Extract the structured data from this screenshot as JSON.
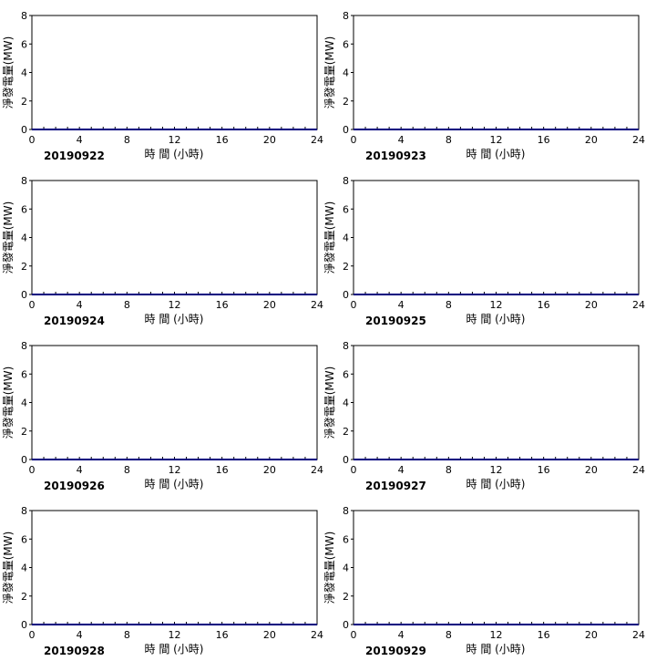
{
  "chart_data": [
    {
      "type": "line",
      "date_label": "20190922",
      "xlabel": "時 間 (小時)",
      "ylabel": "淨發電量(MW)",
      "xlim": [
        0,
        24
      ],
      "ylim": [
        0,
        8
      ],
      "xticks": [
        0,
        4,
        8,
        12,
        16,
        20,
        24
      ],
      "yticks": [
        0,
        2,
        4,
        6,
        8
      ],
      "series": [
        {
          "color": "#00007f",
          "x": [
            0,
            24
          ],
          "values": [
            0,
            0
          ]
        }
      ]
    },
    {
      "type": "line",
      "date_label": "20190923",
      "xlabel": "時 間 (小時)",
      "ylabel": "淨發電量(MW)",
      "xlim": [
        0,
        24
      ],
      "ylim": [
        0,
        8
      ],
      "xticks": [
        0,
        4,
        8,
        12,
        16,
        20,
        24
      ],
      "yticks": [
        0,
        2,
        4,
        6,
        8
      ],
      "series": [
        {
          "color": "#00007f",
          "x": [
            0,
            24
          ],
          "values": [
            0,
            0
          ]
        }
      ]
    },
    {
      "type": "line",
      "date_label": "20190924",
      "xlabel": "時 間 (小時)",
      "ylabel": "淨發電量(MW)",
      "xlim": [
        0,
        24
      ],
      "ylim": [
        0,
        8
      ],
      "xticks": [
        0,
        4,
        8,
        12,
        16,
        20,
        24
      ],
      "yticks": [
        0,
        2,
        4,
        6,
        8
      ],
      "series": [
        {
          "color": "#00007f",
          "x": [
            0,
            24
          ],
          "values": [
            0,
            0
          ]
        }
      ]
    },
    {
      "type": "line",
      "date_label": "20190925",
      "xlabel": "時 間 (小時)",
      "ylabel": "淨發電量(MW)",
      "xlim": [
        0,
        24
      ],
      "ylim": [
        0,
        8
      ],
      "xticks": [
        0,
        4,
        8,
        12,
        16,
        20,
        24
      ],
      "yticks": [
        0,
        2,
        4,
        6,
        8
      ],
      "series": [
        {
          "color": "#00007f",
          "x": [
            0,
            24
          ],
          "values": [
            0,
            0
          ]
        }
      ]
    },
    {
      "type": "line",
      "date_label": "20190926",
      "xlabel": "時 間 (小時)",
      "ylabel": "淨發電量(MW)",
      "xlim": [
        0,
        24
      ],
      "ylim": [
        0,
        8
      ],
      "xticks": [
        0,
        4,
        8,
        12,
        16,
        20,
        24
      ],
      "yticks": [
        0,
        2,
        4,
        6,
        8
      ],
      "series": [
        {
          "color": "#00007f",
          "x": [
            0,
            24
          ],
          "values": [
            0,
            0
          ]
        }
      ]
    },
    {
      "type": "line",
      "date_label": "20190927",
      "xlabel": "時 間 (小時)",
      "ylabel": "淨發電量(MW)",
      "xlim": [
        0,
        24
      ],
      "ylim": [
        0,
        8
      ],
      "xticks": [
        0,
        4,
        8,
        12,
        16,
        20,
        24
      ],
      "yticks": [
        0,
        2,
        4,
        6,
        8
      ],
      "series": [
        {
          "color": "#00007f",
          "x": [
            0,
            24
          ],
          "values": [
            0,
            0
          ]
        }
      ]
    },
    {
      "type": "line",
      "date_label": "20190928",
      "xlabel": "時 間 (小時)",
      "ylabel": "淨發電量(MW)",
      "xlim": [
        0,
        24
      ],
      "ylim": [
        0,
        8
      ],
      "xticks": [
        0,
        4,
        8,
        12,
        16,
        20,
        24
      ],
      "yticks": [
        0,
        2,
        4,
        6,
        8
      ],
      "series": [
        {
          "color": "#00007f",
          "x": [
            0,
            24
          ],
          "values": [
            0,
            0
          ]
        }
      ]
    },
    {
      "type": "line",
      "date_label": "20190929",
      "xlabel": "時 間 (小時)",
      "ylabel": "淨發電量(MW)",
      "xlim": [
        0,
        24
      ],
      "ylim": [
        0,
        8
      ],
      "xticks": [
        0,
        4,
        8,
        12,
        16,
        20,
        24
      ],
      "yticks": [
        0,
        2,
        4,
        6,
        8
      ],
      "series": [
        {
          "color": "#00007f",
          "x": [
            0,
            24
          ],
          "values": [
            0,
            0
          ]
        }
      ]
    }
  ]
}
